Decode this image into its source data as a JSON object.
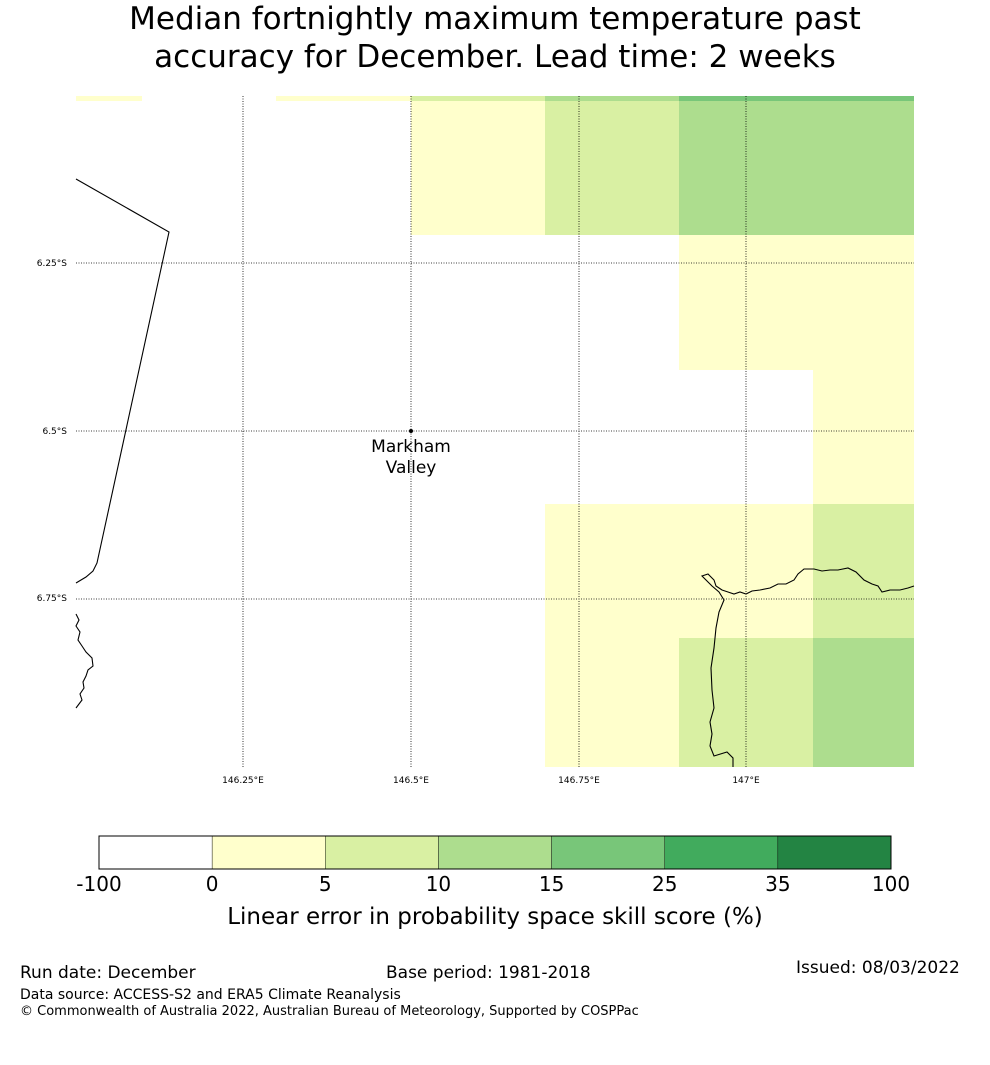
{
  "title": {
    "line1": "Median fortnightly maximum temperature past",
    "line2": "accuracy for December. Lead time: 2 weeks"
  },
  "map": {
    "lat_labels": [
      "6.25°S",
      "6.5°S",
      "6.75°S"
    ],
    "lon_labels": [
      "146.25°E",
      "146.5°E",
      "146.75°E",
      "147°E"
    ],
    "location": {
      "name_line1": "Markham",
      "name_line2": "Valley",
      "lat": -6.5,
      "lon": 146.5
    },
    "colors": {
      "bin_0_5": "#ffffcc",
      "bin_5_10": "#d9f0a3",
      "bin_10_15": "#addd8e",
      "bin_15_25": "#78c679",
      "bin_25_35": "#41ab5d",
      "bin_35_100": "#238443",
      "below_0": "#ffffff"
    }
  },
  "colorbar": {
    "ticks": [
      "-100",
      "0",
      "5",
      "10",
      "15",
      "25",
      "35",
      "100"
    ],
    "colors": [
      "#ffffff",
      "#ffffcc",
      "#d9f0a3",
      "#addd8e",
      "#78c679",
      "#41ab5d",
      "#238443"
    ],
    "label": "Linear error in probability space skill score (%)"
  },
  "footer": {
    "run_date": "Run date: December",
    "base_period": "Base period: 1981-2018",
    "issued": "Issued: 08/03/2022",
    "data_source": "Data source: ACCESS-S2 and ERA5 Climate Reanalysis",
    "copyright": "© Commonwealth of Australia 2022, Australian Bureau of Meteorology, Supported by COSPPac"
  }
}
